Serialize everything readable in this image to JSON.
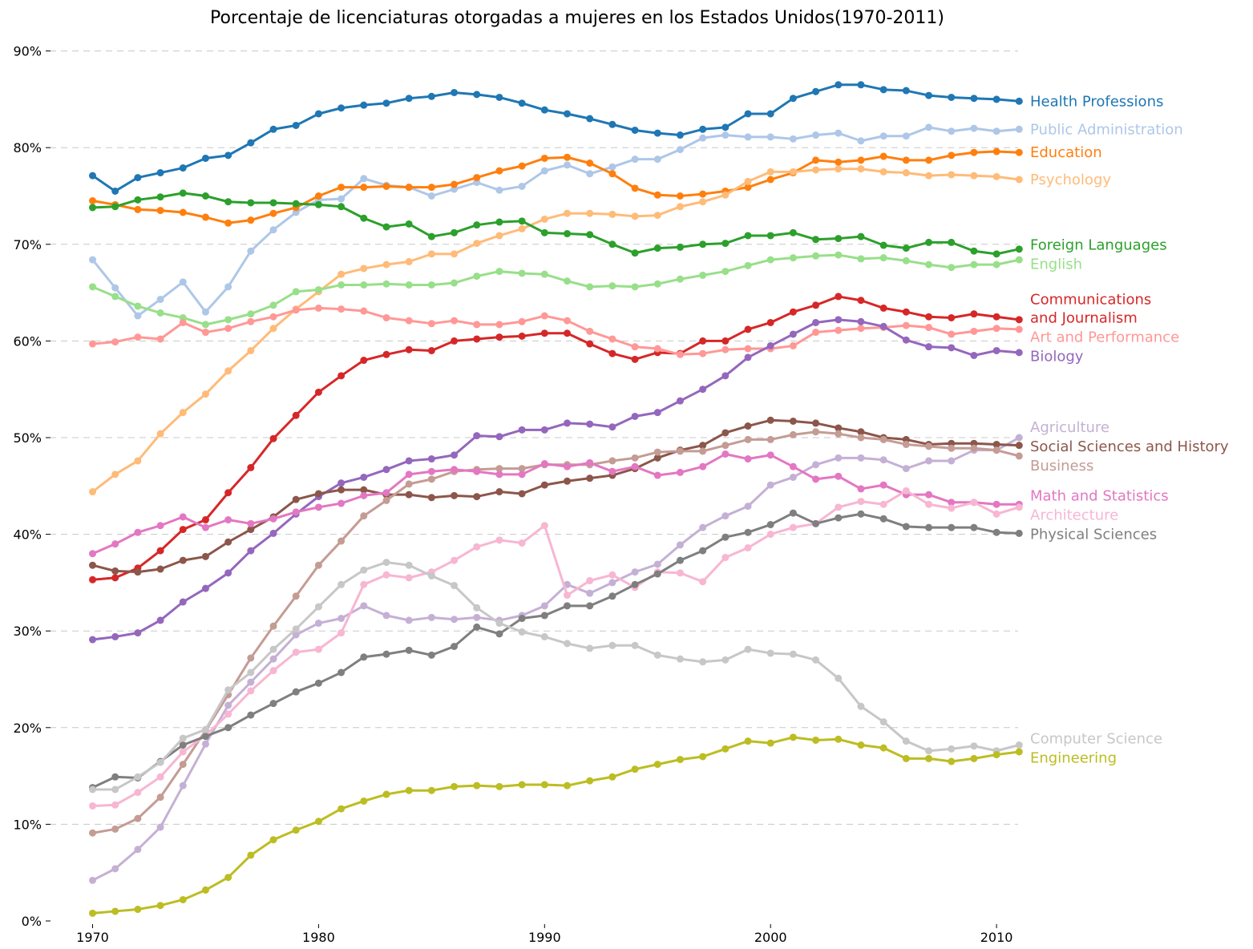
{
  "chart_data": {
    "type": "line",
    "title": "Porcentaje de licenciaturas otorgadas a mujeres en los Estados Unidos(1970-2011)",
    "xlabel": "",
    "ylabel": "",
    "xlim": [
      1968,
      2011
    ],
    "ylim": [
      0,
      90
    ],
    "x_ticks": [
      1970,
      1980,
      1990,
      2000,
      2010
    ],
    "x_tick_labels": [
      "1970",
      "1980",
      "1990",
      "2000",
      "2010"
    ],
    "y_ticks": [
      0,
      10,
      20,
      30,
      40,
      50,
      60,
      70,
      80,
      90
    ],
    "y_tick_labels": [
      "0%",
      "10%",
      "20%",
      "30%",
      "40%",
      "50%",
      "60%",
      "70%",
      "80%",
      "90%"
    ],
    "grid": "horizontal dashed",
    "legend": "direct labels at right end of each line",
    "x": [
      1970,
      1971,
      1972,
      1973,
      1974,
      1975,
      1976,
      1977,
      1978,
      1979,
      1980,
      1981,
      1982,
      1983,
      1984,
      1985,
      1986,
      1987,
      1988,
      1989,
      1990,
      1991,
      1992,
      1993,
      1994,
      1995,
      1996,
      1997,
      1998,
      1999,
      2000,
      2001,
      2002,
      2003,
      2004,
      2005,
      2006,
      2007,
      2008,
      2009,
      2010,
      2011
    ],
    "series": [
      {
        "name": "Health Professions",
        "color": "#1f77b4",
        "label_lines": [
          "Health Professions"
        ],
        "values": [
          77.1,
          75.5,
          76.9,
          77.4,
          77.9,
          78.9,
          79.2,
          80.5,
          81.9,
          82.3,
          83.5,
          84.1,
          84.4,
          84.6,
          85.1,
          85.3,
          85.7,
          85.5,
          85.2,
          84.6,
          83.9,
          83.5,
          83.0,
          82.4,
          81.8,
          81.5,
          81.3,
          81.9,
          82.1,
          83.5,
          83.5,
          85.1,
          85.8,
          86.5,
          86.5,
          86.0,
          85.9,
          85.4,
          85.2,
          85.1,
          85.0,
          84.8
        ]
      },
      {
        "name": "Public Administration",
        "color": "#aec7e8",
        "label_lines": [
          "Public Administration"
        ],
        "values": [
          68.4,
          65.5,
          62.6,
          64.3,
          66.1,
          63.0,
          65.6,
          69.3,
          71.5,
          73.3,
          74.6,
          74.7,
          76.8,
          76.1,
          75.9,
          75.0,
          75.7,
          76.4,
          75.6,
          76.0,
          77.6,
          78.2,
          77.3,
          78.0,
          78.8,
          78.8,
          79.8,
          81.0,
          81.3,
          81.1,
          81.1,
          80.9,
          81.3,
          81.5,
          80.7,
          81.2,
          81.2,
          82.1,
          81.7,
          82.0,
          81.7,
          81.9
        ]
      },
      {
        "name": "Education",
        "color": "#ff7f0e",
        "label_lines": [
          "Education"
        ],
        "values": [
          74.5,
          74.1,
          73.6,
          73.5,
          73.3,
          72.8,
          72.2,
          72.5,
          73.2,
          73.8,
          75.0,
          75.9,
          75.9,
          76.0,
          75.9,
          75.9,
          76.2,
          76.9,
          77.6,
          78.1,
          78.9,
          79.0,
          78.4,
          77.3,
          75.8,
          75.1,
          75.0,
          75.2,
          75.5,
          75.9,
          76.7,
          77.4,
          78.7,
          78.5,
          78.7,
          79.1,
          78.7,
          78.7,
          79.2,
          79.5,
          79.6,
          79.5
        ]
      },
      {
        "name": "Psychology",
        "color": "#ffbb78",
        "label_lines": [
          "Psychology"
        ],
        "values": [
          44.4,
          46.2,
          47.6,
          50.4,
          52.6,
          54.5,
          56.9,
          59.0,
          61.3,
          63.3,
          65.1,
          66.9,
          67.5,
          67.9,
          68.2,
          69.0,
          69.0,
          70.1,
          70.9,
          71.6,
          72.6,
          73.2,
          73.2,
          73.1,
          72.9,
          73.0,
          73.9,
          74.4,
          75.1,
          76.5,
          77.5,
          77.5,
          77.7,
          77.8,
          77.8,
          77.5,
          77.4,
          77.1,
          77.2,
          77.1,
          77.0,
          76.7
        ]
      },
      {
        "name": "Foreign Languages",
        "color": "#2ca02c",
        "label_lines": [
          "Foreign Languages"
        ],
        "values": [
          73.8,
          73.9,
          74.6,
          74.9,
          75.3,
          75.0,
          74.4,
          74.3,
          74.3,
          74.2,
          74.1,
          73.9,
          72.7,
          71.8,
          72.1,
          70.8,
          71.2,
          72.0,
          72.3,
          72.4,
          71.2,
          71.1,
          71.0,
          70.0,
          69.1,
          69.6,
          69.7,
          70.0,
          70.1,
          70.9,
          70.9,
          71.2,
          70.5,
          70.6,
          70.8,
          69.9,
          69.6,
          70.2,
          70.2,
          69.3,
          69.0,
          69.5
        ]
      },
      {
        "name": "English",
        "color": "#98df8a",
        "label_lines": [
          "English"
        ],
        "values": [
          65.6,
          64.6,
          63.6,
          62.9,
          62.4,
          61.7,
          62.2,
          62.8,
          63.7,
          65.1,
          65.3,
          65.8,
          65.8,
          65.9,
          65.8,
          65.8,
          66.0,
          66.7,
          67.2,
          67.0,
          66.9,
          66.2,
          65.6,
          65.7,
          65.6,
          65.9,
          66.4,
          66.8,
          67.2,
          67.8,
          68.4,
          68.6,
          68.8,
          68.9,
          68.5,
          68.6,
          68.3,
          67.9,
          67.6,
          67.9,
          67.9,
          68.4
        ]
      },
      {
        "name": "Communications and Journalism",
        "color": "#d62728",
        "label_lines": [
          "Communications",
          "and Journalism"
        ],
        "values": [
          35.3,
          35.5,
          36.5,
          38.3,
          40.5,
          41.5,
          44.3,
          46.9,
          49.9,
          52.3,
          54.7,
          56.4,
          58.0,
          58.6,
          59.1,
          59.0,
          60.0,
          60.2,
          60.4,
          60.5,
          60.8,
          60.8,
          59.7,
          58.7,
          58.1,
          58.8,
          58.7,
          60.0,
          60.0,
          61.2,
          61.9,
          63.0,
          63.7,
          64.6,
          64.2,
          63.4,
          63.0,
          62.5,
          62.4,
          62.8,
          62.5,
          62.2
        ]
      },
      {
        "name": "Art and Performance",
        "color": "#ff9896",
        "label_lines": [
          "Art and Performance"
        ],
        "values": [
          59.7,
          59.9,
          60.4,
          60.2,
          61.9,
          60.9,
          61.3,
          62.0,
          62.5,
          63.2,
          63.4,
          63.3,
          63.1,
          62.4,
          62.1,
          61.8,
          62.1,
          61.7,
          61.7,
          62.0,
          62.6,
          62.1,
          61.0,
          60.2,
          59.4,
          59.2,
          58.6,
          58.7,
          59.1,
          59.2,
          59.2,
          59.5,
          60.9,
          61.1,
          61.3,
          61.4,
          61.6,
          61.4,
          60.7,
          61.0,
          61.3,
          61.2
        ]
      },
      {
        "name": "Biology",
        "color": "#9467bd",
        "label_lines": [
          "Biology"
        ],
        "values": [
          29.1,
          29.4,
          29.8,
          31.1,
          33.0,
          34.4,
          36.0,
          38.3,
          40.1,
          42.1,
          43.9,
          45.3,
          45.9,
          46.7,
          47.6,
          47.8,
          48.2,
          50.2,
          50.1,
          50.8,
          50.8,
          51.5,
          51.4,
          51.1,
          52.2,
          52.6,
          53.8,
          55.0,
          56.4,
          58.3,
          59.5,
          60.7,
          61.9,
          62.2,
          62.0,
          61.5,
          60.1,
          59.4,
          59.3,
          58.5,
          59.0,
          58.8
        ]
      },
      {
        "name": "Agriculture",
        "color": "#c5b0d5",
        "label_lines": [
          "Agriculture"
        ],
        "values": [
          4.2,
          5.4,
          7.4,
          9.7,
          14.0,
          18.3,
          22.3,
          24.7,
          27.1,
          29.6,
          30.8,
          31.3,
          32.6,
          31.6,
          31.1,
          31.4,
          31.2,
          31.4,
          31.1,
          31.6,
          32.6,
          34.8,
          33.9,
          35.0,
          36.1,
          36.9,
          38.9,
          40.7,
          41.9,
          42.9,
          45.1,
          45.9,
          47.2,
          47.9,
          47.9,
          47.7,
          46.8,
          47.6,
          47.6,
          48.7,
          48.7,
          50.0
        ]
      },
      {
        "name": "Social Sciences and History",
        "color": "#8c564b",
        "label_lines": [
          "Social Sciences and History"
        ],
        "values": [
          36.8,
          36.2,
          36.1,
          36.4,
          37.3,
          37.7,
          39.2,
          40.5,
          41.8,
          43.6,
          44.2,
          44.6,
          44.6,
          44.1,
          44.1,
          43.8,
          44.0,
          43.9,
          44.4,
          44.2,
          45.1,
          45.5,
          45.8,
          46.1,
          46.8,
          47.9,
          48.7,
          49.2,
          50.5,
          51.2,
          51.8,
          51.7,
          51.5,
          51.0,
          50.6,
          50.0,
          49.8,
          49.3,
          49.4,
          49.4,
          49.3,
          49.2
        ]
      },
      {
        "name": "Business",
        "color": "#c49c94",
        "label_lines": [
          "Business"
        ],
        "values": [
          9.1,
          9.5,
          10.6,
          12.8,
          16.2,
          19.7,
          23.4,
          27.2,
          30.5,
          33.6,
          36.8,
          39.3,
          41.9,
          43.5,
          45.2,
          45.7,
          46.5,
          46.7,
          46.8,
          46.8,
          47.2,
          47.2,
          47.2,
          47.6,
          47.9,
          48.5,
          48.6,
          48.6,
          49.2,
          49.8,
          49.8,
          50.3,
          50.6,
          50.4,
          50.0,
          49.8,
          49.3,
          49.1,
          48.9,
          48.9,
          48.7,
          48.1
        ]
      },
      {
        "name": "Math and Statistics",
        "color": "#e377c2",
        "label_lines": [
          "Math and Statistics"
        ],
        "values": [
          38.0,
          39.0,
          40.2,
          40.9,
          41.8,
          40.7,
          41.5,
          41.1,
          41.6,
          42.3,
          42.8,
          43.2,
          44.0,
          44.3,
          46.2,
          46.5,
          46.7,
          46.5,
          46.2,
          46.2,
          47.3,
          47.0,
          47.4,
          46.5,
          47.0,
          46.1,
          46.4,
          47.0,
          48.3,
          47.8,
          48.2,
          47.0,
          45.7,
          46.0,
          44.7,
          45.1,
          44.1,
          44.1,
          43.3,
          43.3,
          43.1,
          43.1
        ]
      },
      {
        "name": "Architecture",
        "color": "#f7b6d2",
        "label_lines": [
          "Architecture"
        ],
        "values": [
          11.9,
          12.0,
          13.3,
          14.9,
          17.5,
          19.2,
          21.4,
          23.8,
          25.9,
          27.8,
          28.1,
          29.8,
          34.8,
          35.8,
          35.5,
          36.1,
          37.3,
          38.7,
          39.4,
          39.1,
          40.9,
          33.7,
          35.2,
          35.8,
          34.5,
          36.1,
          36.0,
          35.1,
          37.6,
          38.6,
          40.0,
          40.7,
          41.1,
          42.8,
          43.4,
          43.1,
          44.5,
          43.1,
          42.7,
          43.3,
          42.1,
          42.8
        ]
      },
      {
        "name": "Physical Sciences",
        "color": "#7f7f7f",
        "label_lines": [
          "Physical Sciences"
        ],
        "values": [
          13.8,
          14.9,
          14.8,
          16.5,
          18.2,
          19.1,
          20.0,
          21.3,
          22.5,
          23.7,
          24.6,
          25.7,
          27.3,
          27.6,
          28.0,
          27.5,
          28.4,
          30.4,
          29.7,
          31.3,
          31.6,
          32.6,
          32.6,
          33.6,
          34.8,
          35.9,
          37.3,
          38.3,
          39.7,
          40.2,
          41.0,
          42.2,
          41.1,
          41.7,
          42.1,
          41.6,
          40.8,
          40.7,
          40.7,
          40.7,
          40.2,
          40.1
        ]
      },
      {
        "name": "Computer Science",
        "color": "#c7c7c7",
        "label_lines": [
          "Computer Science"
        ],
        "values": [
          13.6,
          13.6,
          14.9,
          16.4,
          18.9,
          19.8,
          23.9,
          25.7,
          28.1,
          30.2,
          32.5,
          34.8,
          36.3,
          37.1,
          36.8,
          35.7,
          34.7,
          32.4,
          30.8,
          29.9,
          29.4,
          28.7,
          28.2,
          28.5,
          28.5,
          27.5,
          27.1,
          26.8,
          27.0,
          28.1,
          27.7,
          27.6,
          27.0,
          25.1,
          22.2,
          20.6,
          18.6,
          17.6,
          17.8,
          18.1,
          17.6,
          18.2
        ]
      },
      {
        "name": "Engineering",
        "color": "#bcbd22",
        "label_lines": [
          "Engineering"
        ],
        "values": [
          0.8,
          1.0,
          1.2,
          1.6,
          2.2,
          3.2,
          4.5,
          6.8,
          8.4,
          9.4,
          10.3,
          11.6,
          12.4,
          13.1,
          13.5,
          13.5,
          13.9,
          14.0,
          13.9,
          14.1,
          14.1,
          14.0,
          14.5,
          14.9,
          15.7,
          16.2,
          16.7,
          17.0,
          17.8,
          18.6,
          18.4,
          19.0,
          18.7,
          18.8,
          18.2,
          17.9,
          16.8,
          16.8,
          16.5,
          16.8,
          17.2,
          17.5
        ]
      }
    ]
  }
}
